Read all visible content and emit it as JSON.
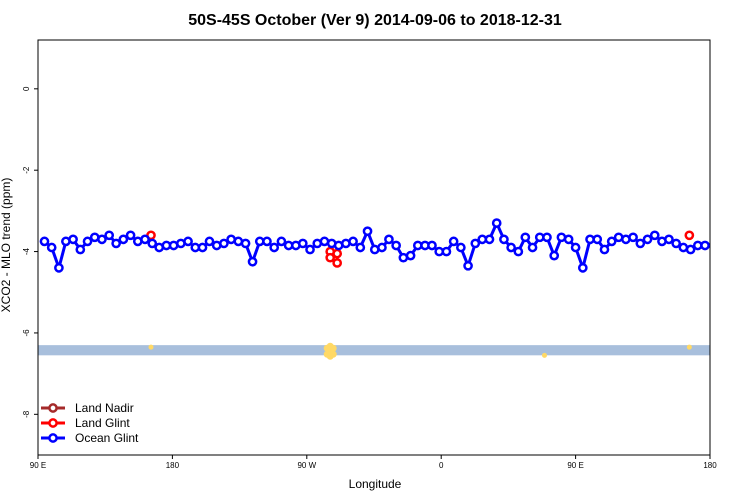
{
  "chart_data": {
    "type": "line",
    "title": "50S-45S October (Ver 9)   2014-09-06 to 2018-12-31",
    "xlabel": "Longitude",
    "ylabel": "XCO2 - MLO trend (ppm)",
    "xlim": [
      -90,
      180
    ],
    "ylim": [
      -9.0,
      1.2
    ],
    "x_ticks": [
      {
        "value": -90,
        "label": "90 E"
      },
      {
        "value": -36,
        "label": "180"
      },
      {
        "value": 18,
        "label": "90 W"
      },
      {
        "value": 72,
        "label": "0"
      },
      {
        "value": 126,
        "label": "90 E"
      },
      {
        "value": 180,
        "label": "180"
      }
    ],
    "y_ticks": [
      {
        "value": 0,
        "label": "0"
      },
      {
        "value": -2,
        "label": "-2"
      },
      {
        "value": -4,
        "label": "-4"
      },
      {
        "value": -6,
        "label": "-6"
      },
      {
        "value": -8,
        "label": "-8"
      }
    ],
    "grid": false,
    "legend_position": "bottom-left",
    "land_band": {
      "ymin": -6.55,
      "ymax": -6.3,
      "color": "#a8bfdc"
    },
    "land_markers": [
      {
        "x": -44.6,
        "y": -6.35,
        "size": "small"
      },
      {
        "x": 27.4,
        "y": -6.45,
        "size": "large"
      },
      {
        "x": 113.5,
        "y": -6.55,
        "size": "small"
      },
      {
        "x": 171.7,
        "y": -6.35,
        "size": "small"
      }
    ],
    "land_marker_color": "#ffd966",
    "series": [
      {
        "name": "Land Nadir",
        "color": "#a52a2a",
        "segments": []
      },
      {
        "name": "Land Glint",
        "color": "#ff0000",
        "segments": [
          [
            [
              -44.6,
              -3.6
            ]
          ],
          [
            [
              27.4,
              -4.0
            ],
            [
              27.4,
              -4.15
            ],
            [
              30.2,
              -4.05
            ],
            [
              30.2,
              -4.28
            ]
          ],
          [
            [
              171.7,
              -3.6
            ]
          ]
        ]
      },
      {
        "name": "Ocean Glint",
        "color": "#0000ff",
        "segments": [
          [
            [
              -87.4,
              -3.75
            ],
            [
              -84.5,
              -3.9
            ],
            [
              -81.6,
              -4.4
            ],
            [
              -78.8,
              -3.75
            ],
            [
              -75.9,
              -3.7
            ],
            [
              -73.0,
              -3.95
            ],
            [
              -70.1,
              -3.75
            ],
            [
              -67.2,
              -3.65
            ],
            [
              -64.3,
              -3.7
            ],
            [
              -61.4,
              -3.6
            ],
            [
              -58.6,
              -3.8
            ],
            [
              -55.7,
              -3.7
            ],
            [
              -52.8,
              -3.6
            ],
            [
              -49.9,
              -3.75
            ],
            [
              -47.0,
              -3.7
            ],
            [
              -44.1,
              -3.8
            ],
            [
              -41.3,
              -3.9
            ],
            [
              -38.4,
              -3.85
            ],
            [
              -35.5,
              -3.85
            ],
            [
              -32.6,
              -3.8
            ],
            [
              -29.7,
              -3.75
            ],
            [
              -26.8,
              -3.9
            ],
            [
              -23.9,
              -3.9
            ],
            [
              -21.1,
              -3.75
            ],
            [
              -18.2,
              -3.85
            ],
            [
              -15.3,
              -3.8
            ],
            [
              -12.4,
              -3.7
            ],
            [
              -9.5,
              -3.75
            ],
            [
              -6.6,
              -3.8
            ],
            [
              -3.8,
              -4.25
            ],
            [
              -0.9,
              -3.75
            ],
            [
              2.0,
              -3.75
            ],
            [
              4.9,
              -3.9
            ],
            [
              7.8,
              -3.75
            ],
            [
              10.7,
              -3.85
            ],
            [
              13.6,
              -3.85
            ],
            [
              16.4,
              -3.8
            ],
            [
              19.3,
              -3.95
            ],
            [
              22.2,
              -3.8
            ],
            [
              25.1,
              -3.75
            ],
            [
              28.0,
              -3.8
            ],
            [
              30.8,
              -3.85
            ],
            [
              33.7,
              -3.8
            ],
            [
              36.6,
              -3.75
            ],
            [
              39.5,
              -3.9
            ],
            [
              42.4,
              -3.5
            ],
            [
              45.3,
              -3.95
            ],
            [
              48.2,
              -3.9
            ],
            [
              51.0,
              -3.7
            ],
            [
              53.9,
              -3.85
            ],
            [
              56.8,
              -4.15
            ],
            [
              59.7,
              -4.1
            ],
            [
              62.6,
              -3.85
            ],
            [
              65.5,
              -3.85
            ],
            [
              68.3,
              -3.85
            ],
            [
              71.2,
              -4.0
            ],
            [
              74.1,
              -4.0
            ],
            [
              77.0,
              -3.75
            ],
            [
              79.9,
              -3.9
            ],
            [
              82.8,
              -4.35
            ],
            [
              85.7,
              -3.8
            ],
            [
              88.5,
              -3.7
            ],
            [
              91.4,
              -3.7
            ],
            [
              94.3,
              -3.3
            ],
            [
              97.2,
              -3.7
            ],
            [
              100.1,
              -3.9
            ],
            [
              103.0,
              -4.0
            ],
            [
              105.8,
              -3.65
            ],
            [
              108.7,
              -3.9
            ],
            [
              111.6,
              -3.65
            ],
            [
              114.5,
              -3.65
            ],
            [
              117.4,
              -4.1
            ],
            [
              120.3,
              -3.65
            ],
            [
              123.2,
              -3.7
            ],
            [
              126.0,
              -3.9
            ],
            [
              128.9,
              -4.4
            ],
            [
              131.8,
              -3.7
            ],
            [
              134.7,
              -3.7
            ],
            [
              137.6,
              -3.95
            ],
            [
              140.5,
              -3.75
            ],
            [
              143.3,
              -3.65
            ],
            [
              146.2,
              -3.7
            ],
            [
              149.1,
              -3.65
            ],
            [
              152.0,
              -3.8
            ],
            [
              154.9,
              -3.7
            ],
            [
              157.8,
              -3.6
            ],
            [
              160.7,
              -3.75
            ],
            [
              163.5,
              -3.7
            ],
            [
              166.4,
              -3.8
            ],
            [
              169.3,
              -3.9
            ],
            [
              172.2,
              -3.95
            ],
            [
              175.1,
              -3.85
            ],
            [
              178.0,
              -3.85
            ]
          ]
        ]
      }
    ]
  }
}
